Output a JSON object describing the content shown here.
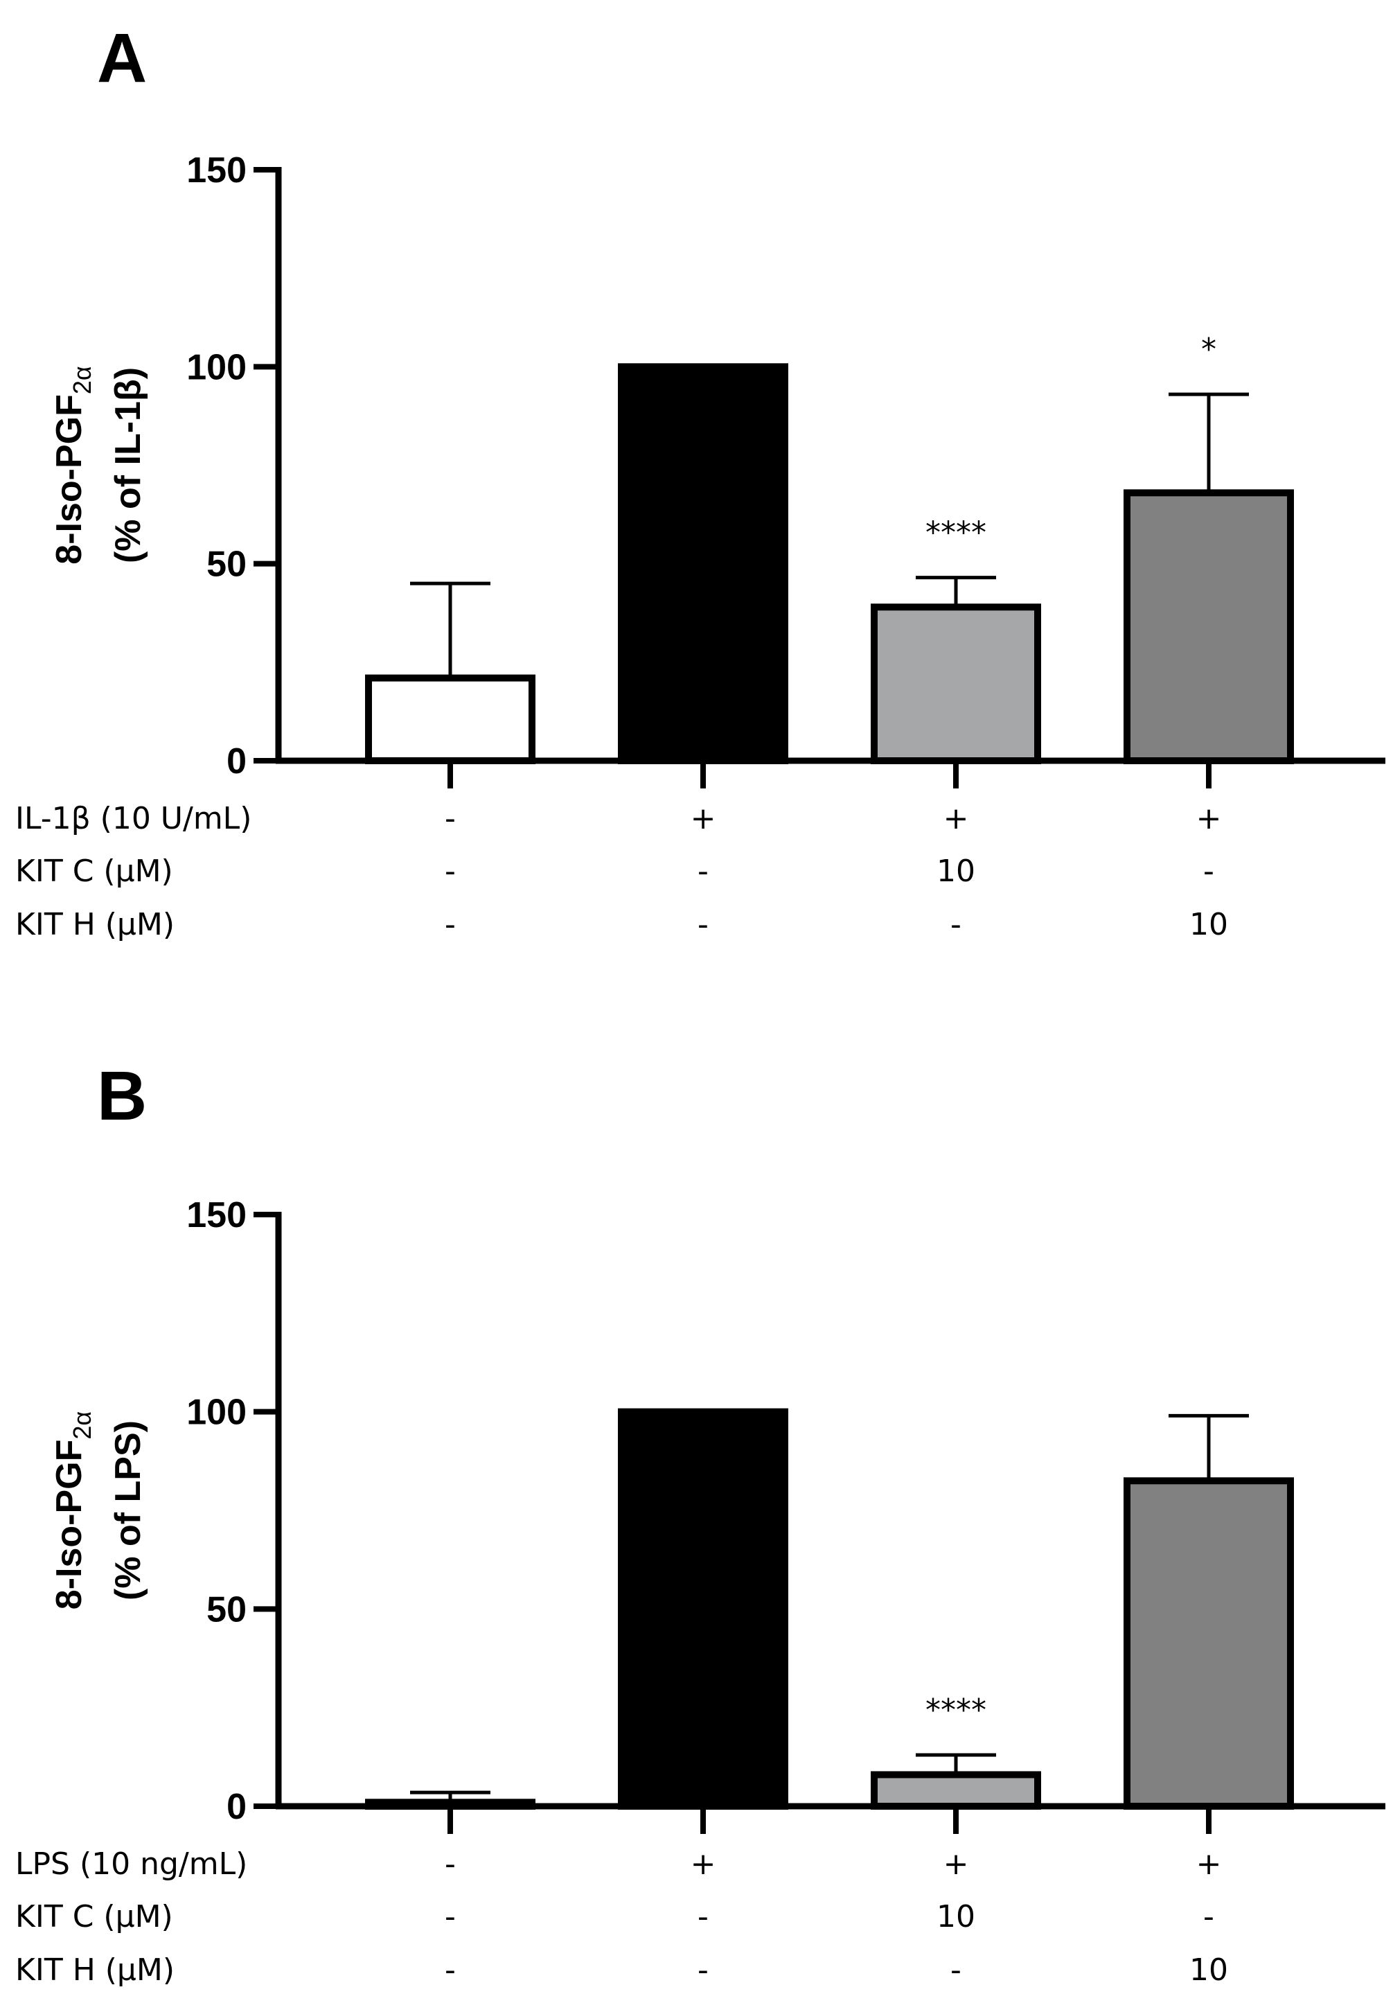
{
  "chart_data": [
    {
      "type": "bar",
      "panel": "A",
      "ylabel_main": "8-Iso-PGF",
      "ylabel_sub": "2α",
      "ylabel_line2": "(% of IL-1β)",
      "ylim": [
        0,
        150
      ],
      "yticks": [
        "0",
        "50",
        "100",
        "150"
      ],
      "ytick_values": [
        0,
        50,
        100,
        150
      ],
      "values": [
        21,
        100,
        39,
        68
      ],
      "errors": [
        24,
        0,
        7.5,
        25
      ],
      "colors": [
        "#ffffff",
        "#000000",
        "#a6a7a9",
        "#818181"
      ],
      "significance": [
        "",
        "",
        "****",
        "*"
      ],
      "conditions": [
        {
          "label": "IL-1β (10 U/mL)",
          "values": [
            "-",
            "+",
            "+",
            "+"
          ]
        },
        {
          "label": "KIT C (μM)",
          "values": [
            "-",
            "-",
            "10",
            "-"
          ]
        },
        {
          "label": "KIT H (μM)",
          "values": [
            "-",
            "-",
            "-",
            "10"
          ]
        }
      ]
    },
    {
      "type": "bar",
      "panel": "B",
      "ylabel_main": "8-Iso-PGF",
      "ylabel_sub": "2α",
      "ylabel_line2": "(% of LPS)",
      "ylim": [
        0,
        150
      ],
      "yticks": [
        "0",
        "50",
        "100",
        "150"
      ],
      "ytick_values": [
        0,
        50,
        100,
        150
      ],
      "values": [
        1,
        100,
        8,
        82.5
      ],
      "errors": [
        2.5,
        0,
        5,
        16.5
      ],
      "colors": [
        "#ffffff",
        "#000000",
        "#a6a7a9",
        "#818181"
      ],
      "significance": [
        "",
        "",
        "****",
        ""
      ],
      "conditions": [
        {
          "label": "LPS (10 ng/mL)",
          "values": [
            "-",
            "+",
            "+",
            "+"
          ]
        },
        {
          "label": "KIT C (μM)",
          "values": [
            "-",
            "-",
            "10",
            "-"
          ]
        },
        {
          "label": "KIT H (μM)",
          "values": [
            "-",
            "-",
            "-",
            "10"
          ]
        }
      ]
    }
  ]
}
